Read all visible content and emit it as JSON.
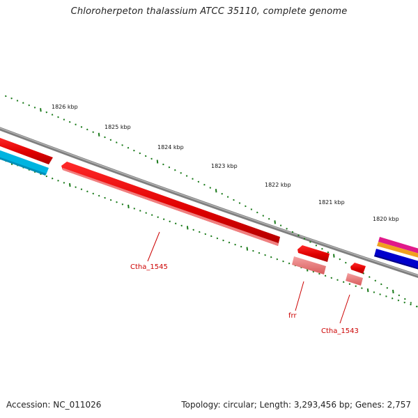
{
  "title": "Chloroherpeton thalassium ATCC 35110, complete genome",
  "accession": "Accession: NC_011026",
  "summary": "Topology: circular; Length: 3,293,456 bp; Genes: 2,757",
  "scale_labels": [
    "1826 kbp",
    "1825 kbp",
    "1824 kbp",
    "1823 kbp",
    "1822 kbp",
    "1821 kbp",
    "1820 kbp"
  ],
  "gene_labels": [
    "Ctha_1545",
    "frr",
    "Ctha_1543"
  ],
  "colors": {
    "backbone": "#8a8a8a",
    "tick": "#1a7a1a",
    "gene_forward": "#ee0000",
    "gene_reverse": "#f08080",
    "gene_blue": "#0000cc",
    "gene_cyan": "#00aadd",
    "gene_magenta": "#e0198a",
    "gene_orange": "#f0a020",
    "label": "#cc0000"
  }
}
